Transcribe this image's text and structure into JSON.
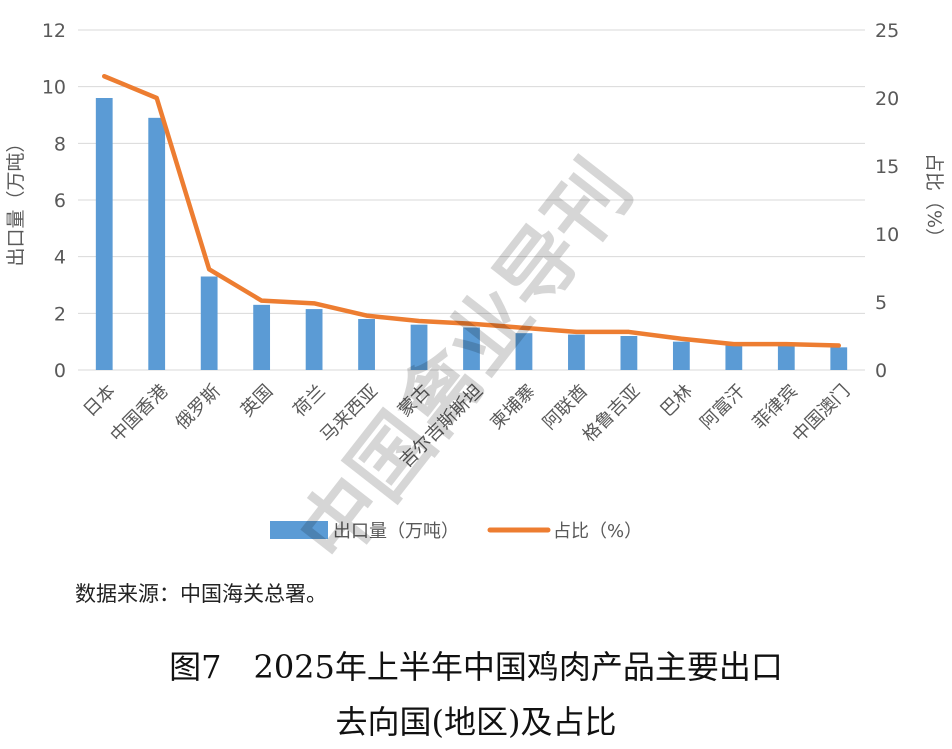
{
  "chart_data": {
    "type": "bar+line",
    "categories": [
      "日本",
      "中国香港",
      "俄罗斯",
      "英国",
      "荷兰",
      "马来西亚",
      "蒙古",
      "吉尔吉斯斯坦",
      "柬埔寨",
      "阿联酋",
      "格鲁吉亚",
      "巴林",
      "阿富汗",
      "菲律宾",
      "中国澳门"
    ],
    "series": [
      {
        "name": "出口量（万吨）",
        "type": "bar",
        "axis": "left",
        "values": [
          9.6,
          8.9,
          3.3,
          2.3,
          2.15,
          1.8,
          1.6,
          1.5,
          1.3,
          1.25,
          1.2,
          1.0,
          0.9,
          0.85,
          0.8
        ]
      },
      {
        "name": "占比（%）",
        "type": "line",
        "axis": "right",
        "values": [
          21.6,
          20.0,
          7.4,
          5.1,
          4.9,
          4.0,
          3.6,
          3.4,
          3.1,
          2.8,
          2.8,
          2.3,
          1.9,
          1.9,
          1.8
        ]
      }
    ],
    "ylabel_left": "出口量（万吨）",
    "ylabel_right": "占比（%）",
    "ylim_left": [
      0,
      12
    ],
    "ylim_right": [
      0,
      25
    ],
    "yticks_left": [
      "0",
      "2",
      "4",
      "6",
      "8",
      "10",
      "12"
    ],
    "yticks_right": [
      "0",
      "5",
      "10",
      "15",
      "20",
      "25"
    ],
    "grid": true,
    "legend": "bottom",
    "colors": {
      "bar": "#5B9BD5",
      "line": "#ED7D31",
      "grid": "#D9D9D9"
    }
  },
  "watermark": "中国禽业导刊",
  "source": "数据来源：中国海关总署。",
  "caption_line1": "图7　2025年上半年中国鸡肉产品主要出口",
  "caption_line2": "去向国(地区)及占比"
}
